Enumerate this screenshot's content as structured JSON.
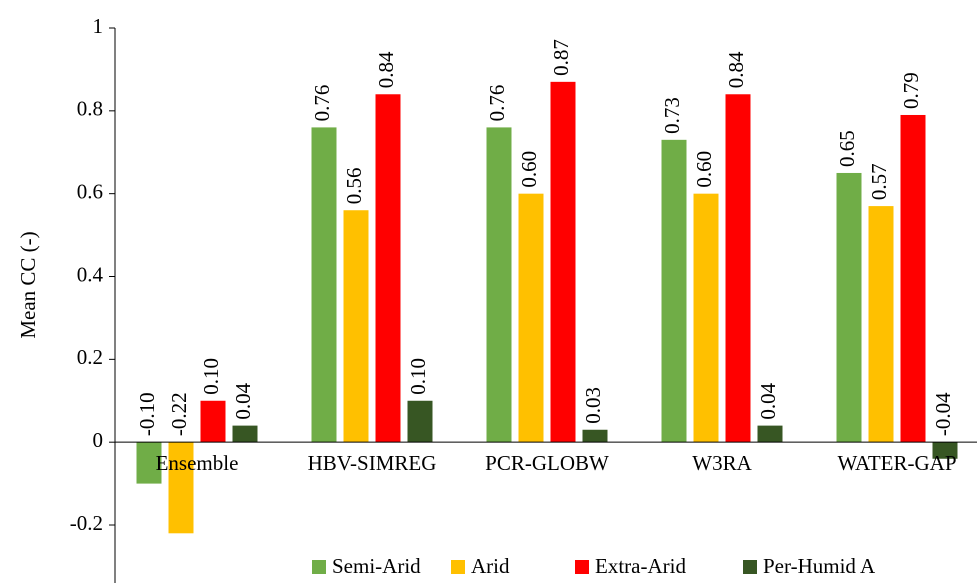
{
  "chart_data": {
    "type": "bar",
    "y_label": "Mean CC (-)",
    "categories": [
      "Ensemble",
      "HBV-SIMREG",
      "PCR-GLOBW",
      "W3RA",
      "WATER-GAP"
    ],
    "series": [
      {
        "name": "Semi-Arid",
        "color": "#70ad47",
        "values": [
          -0.1,
          0.76,
          0.76,
          0.73,
          0.65
        ],
        "value_labels": [
          "-0.10",
          "0.76",
          "0.76",
          "0.73",
          "0.65"
        ]
      },
      {
        "name": "Arid",
        "color": "#ffc000",
        "values": [
          -0.22,
          0.56,
          0.6,
          0.6,
          0.57
        ],
        "value_labels": [
          "-0.22",
          "0.56",
          "0.60",
          "0.60",
          "0.57"
        ]
      },
      {
        "name": "Extra-Arid",
        "color": "#ff0000",
        "values": [
          0.1,
          0.84,
          0.87,
          0.84,
          0.79
        ],
        "value_labels": [
          "0.10",
          "0.84",
          "0.87",
          "0.84",
          "0.79"
        ]
      },
      {
        "name": "Per-Humid A",
        "color": "#375623",
        "values": [
          0.04,
          0.1,
          0.03,
          0.04,
          -0.04
        ],
        "value_labels": [
          "0.04",
          "0.10",
          "0.03",
          "0.04",
          "-0.04"
        ]
      }
    ],
    "ylim": [
      -0.34,
      1
    ],
    "yticks": [
      -0.2,
      0,
      0.2,
      0.4,
      0.6,
      0.8,
      1
    ],
    "legend": "bottom"
  }
}
